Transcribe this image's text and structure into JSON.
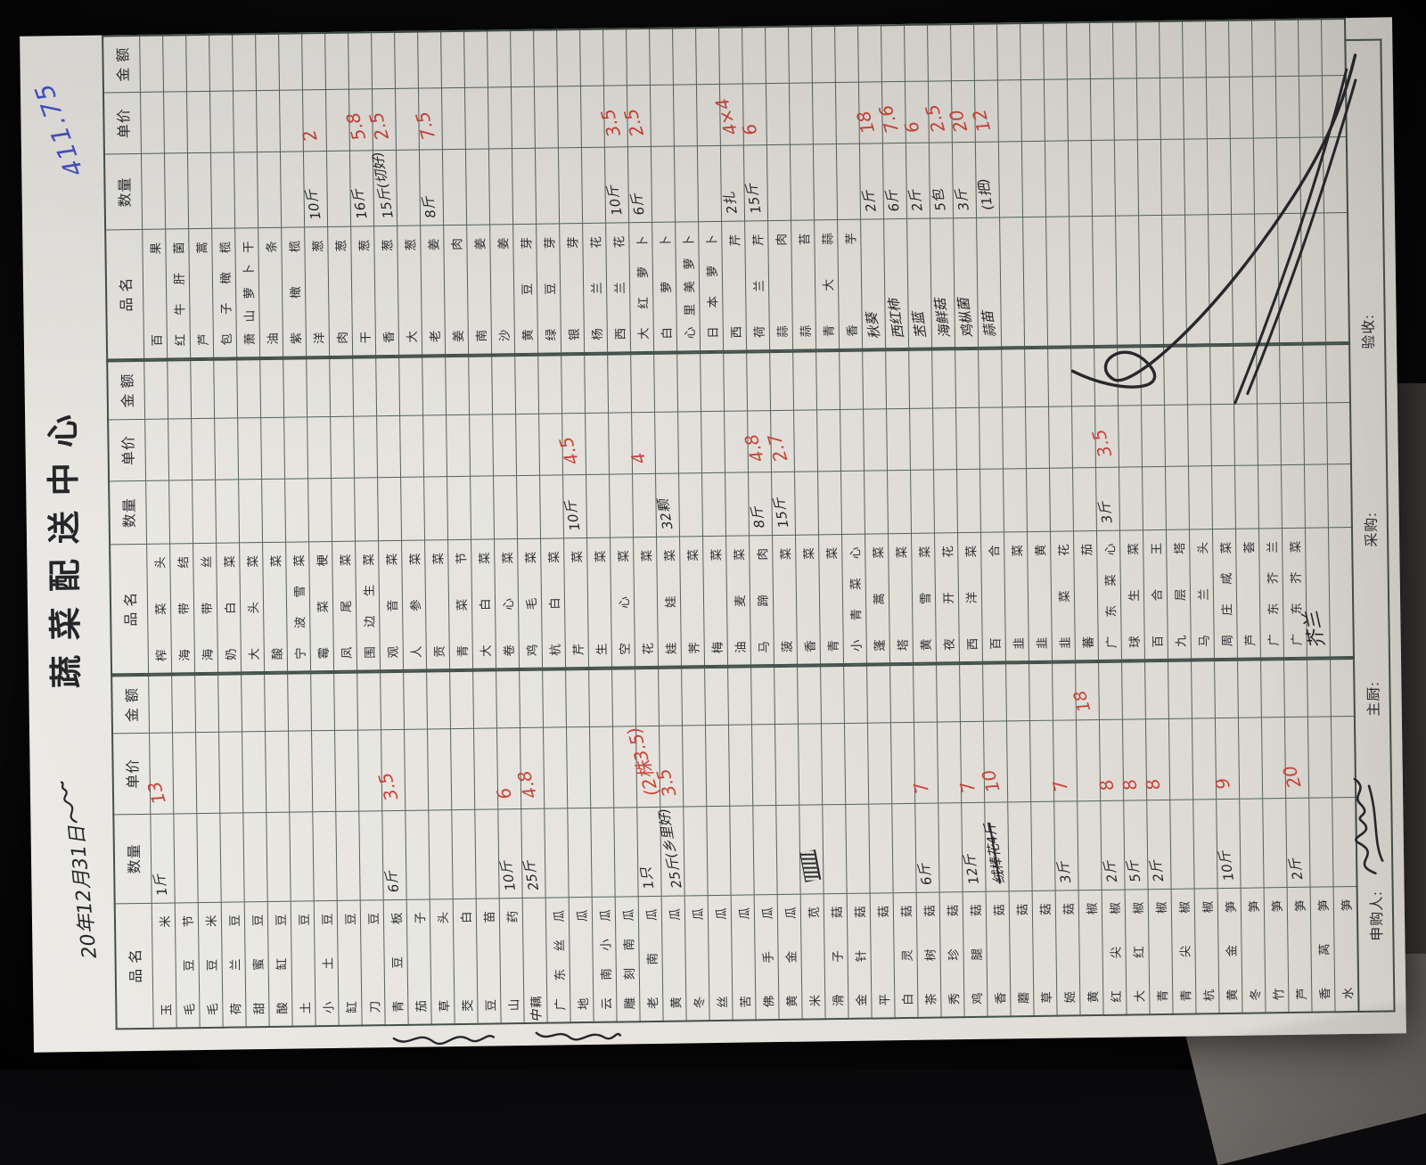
{
  "photo": {
    "background": "#0b0b0d",
    "paper_rotation_deg": -90.8
  },
  "ink": {
    "red": "#c84438",
    "black": "#26262b",
    "blue": "#4553c8",
    "print": "#2e2f33",
    "grid_line": "#55625c"
  },
  "header": {
    "date": "20年12月31日",
    "title": "蔬菜配送中心",
    "total_blue": "411.75"
  },
  "columns": {
    "name": "品  名",
    "qty": "数量",
    "price": "单价",
    "amount": "金  额"
  },
  "footer": {
    "applicant": "申购人:",
    "chef": "主厨:",
    "purchase": "采购:",
    "inspect": "验收:"
  },
  "groups": [
    {
      "rows": [
        {
          "n": "玉米",
          "q": "1斤",
          "p": "13"
        },
        "毛豆节",
        "毛豆米",
        "荷兰豆",
        "甜蜜豆",
        "酸缸豆",
        "土豆",
        "小土豆",
        "缸豆",
        "刀豆",
        {
          "n": "青豆板",
          "q": "6斤",
          "p": "3.5"
        },
        "茄子",
        "草头",
        "茭白",
        "豆苗",
        {
          "n": "山药",
          "q": "10斤",
          "p": "6"
        },
        {
          "n": "藕",
          "pre": "中",
          "q": "25斤",
          "p": "4.8"
        },
        "广东丝瓜",
        "地瓜",
        "云南小瓜",
        "雕刻南瓜",
        {
          "n": "老南瓜",
          "q": "1只",
          "p": "(2株3.5)"
        },
        {
          "n": "黄瓜",
          "q": "25斤(乡里好)",
          "p": "3.5"
        },
        "冬瓜",
        "丝瓜",
        "苦瓜",
        "佛手瓜",
        "黄金瓜",
        {
          "n": "米苋",
          "blot": true
        },
        "滑子菇",
        "金针菇",
        "平菇",
        "白灵菇",
        {
          "n": "茶树菇",
          "q": "6斤",
          "p": "7"
        },
        "秀珍菇",
        {
          "n": "鸡腿菇",
          "q": "12斤",
          "p": "7"
        },
        {
          "n": "香菇",
          "q": "绒棒花4斤",
          "strike": true,
          "p": "10"
        },
        "蘑菇",
        "草菇",
        {
          "n": "姬菇",
          "q": "3斤",
          "p": "7"
        },
        {
          "n": "黄椒",
          "a": "18"
        },
        {
          "n": "红尖椒",
          "q": "2斤",
          "p": "8"
        },
        {
          "n": "大红椒",
          "q": "5斤",
          "p": "8"
        },
        {
          "n": "青椒",
          "q": "2斤",
          "p": "8"
        },
        "青尖椒",
        "杭椒",
        {
          "n": "黄金笋",
          "q": "10斤",
          "p": "9"
        },
        "冬笋",
        "竹笋",
        {
          "n": "芦笋",
          "q": "2斤",
          "p": "20"
        },
        "香莴笋",
        "水笋"
      ]
    },
    {
      "rows": [
        "榨菜头",
        "海带结",
        "海带丝",
        "奶白菜",
        "大头菜",
        "酸菜",
        "宁波雪菜",
        "霉菜梗",
        "凤尾菜",
        "围边生菜",
        "观音菜",
        "人参菜",
        "贡菜",
        "青菜节",
        "大白菜",
        "卷心菜",
        "鸡毛菜",
        "杭白菜",
        {
          "n": "芹菜",
          "q": "10斤",
          "p": "4.5"
        },
        "生菜",
        "空心菜",
        {
          "n": "花菜",
          "p": "4"
        },
        {
          "n": "娃娃菜",
          "q": "32颗"
        },
        "荠菜",
        "梅菜",
        "油麦菜",
        {
          "n": "马蹄肉",
          "q": "8斤",
          "p": "4.8"
        },
        {
          "n": "菠菜",
          "q": "15斤",
          "p": "2.7"
        },
        "香菜",
        "青菜",
        "小青菜心",
        "蓬蒿菜",
        "塔菜",
        "黄雪菜",
        "夜开花",
        "西洋菜",
        "百合",
        "韭菜",
        "韭黄",
        "韭菜花",
        "蕃茄",
        {
          "n": "广东菜心",
          "q": "3斤",
          "p": "3.5"
        },
        "球生菜",
        "百合王",
        "九层塔",
        "马兰头",
        "周庄咸菜",
        "芦荟",
        "广东芥兰",
        "广东芥菜",
        {
          "n": "芥兰",
          "hw": true,
          "big": true
        },
        ""
      ]
    },
    {
      "rows": [
        "百果",
        "红牛肝菌",
        "芦蒿",
        "包子橄榄",
        "萧山萝卜干",
        "油条",
        "紫橄榄",
        {
          "n": "洋葱",
          "q": "10斤",
          "p": "2"
        },
        "肉葱",
        {
          "n": "干葱",
          "q": "16斤",
          "p": "5.8"
        },
        {
          "n": "香葱",
          "q": "15斤(切好)",
          "p": "2.5"
        },
        "大葱",
        {
          "n": "老姜",
          "q": "8斤",
          "p": "7.5"
        },
        "姜肉",
        "南姜",
        "沙姜",
        "黄豆芽",
        "绿豆芽",
        "银芽",
        "杨兰花",
        {
          "n": "西兰花",
          "q": "10斤",
          "p": "3.5"
        },
        {
          "n": "大红萝卜",
          "q": "6斤",
          "p": "2.5"
        },
        "白萝卜",
        "心里美萝卜",
        "日本萝卜",
        {
          "n": "西芹",
          "q": "2扎",
          "p": "4×4"
        },
        {
          "n": "荷兰芹",
          "q": "15斤",
          "p": "6"
        },
        "蒜肉",
        "蒜苔",
        "青大蒜",
        "香芋",
        {
          "n": "秋葵",
          "hw": true,
          "q": "2斤",
          "p": "18"
        },
        {
          "n": "西红柿",
          "hw": true,
          "q": "6斤",
          "p": "7.6"
        },
        {
          "n": "苤蓝",
          "hw": true,
          "q": "2斤",
          "p": "6"
        },
        {
          "n": "海鲜菇",
          "hw": true,
          "q": "5包",
          "p": "2.5"
        },
        {
          "n": "鸡枞菌",
          "hw": true,
          "q": "3斤",
          "p": "20"
        },
        {
          "n": "蒜苗",
          "hw": true,
          "q": "(1把)",
          "p": "12"
        },
        "",
        "",
        "",
        "",
        "",
        "",
        "",
        "",
        "",
        "",
        "",
        "",
        "",
        "",
        ""
      ]
    }
  ]
}
